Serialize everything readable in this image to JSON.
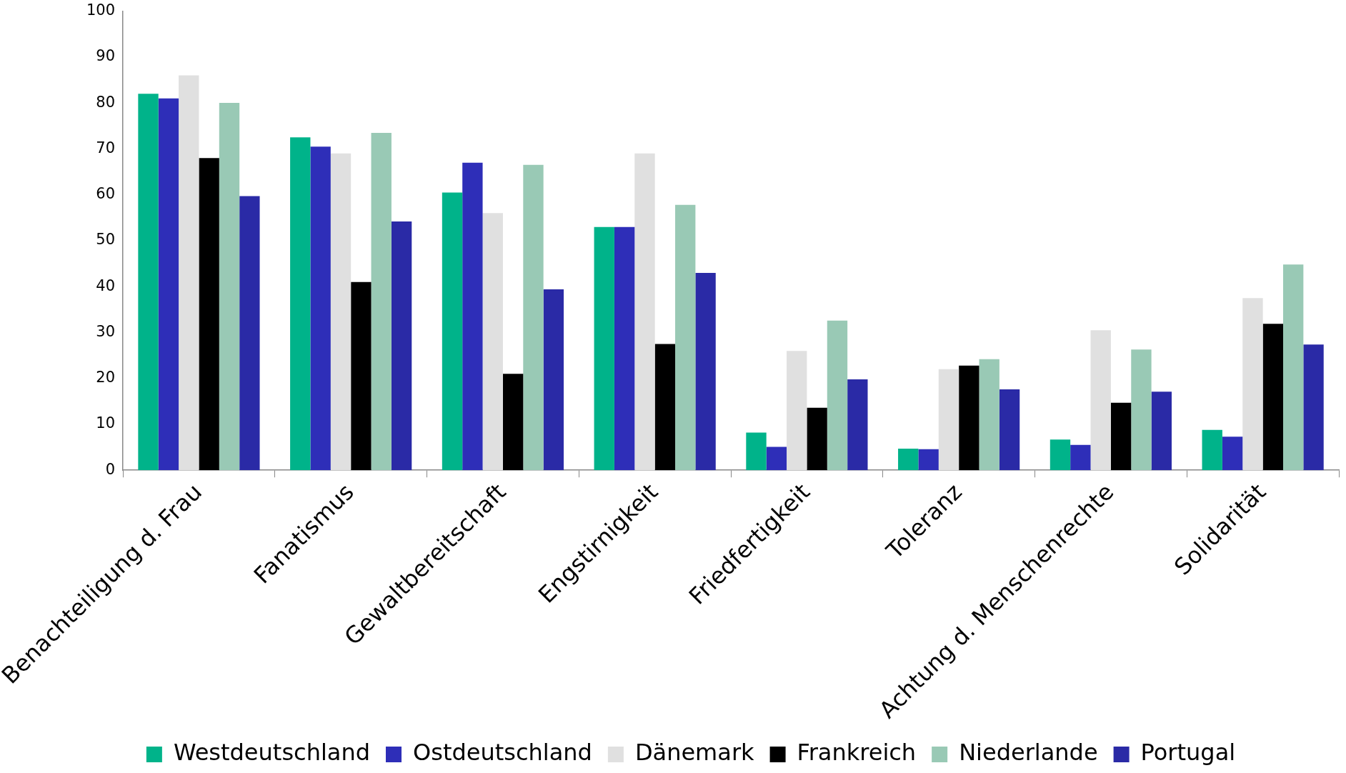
{
  "chart_data": {
    "type": "bar",
    "categories": [
      "Benachteiligung d. Frau",
      "Fanatismus",
      "Gewaltbereitschaft",
      "Engstirnigkeit",
      "Friedfertigkeit",
      "Toleranz",
      "Achtung d. Menschenrechte",
      "Solidarität"
    ],
    "series": [
      {
        "name": "Westdeutschland",
        "color": "#00b38a",
        "values": [
          82,
          72.5,
          60.5,
          53,
          8.2,
          4.7,
          6.7,
          8.8
        ]
      },
      {
        "name": "Ostdeutschland",
        "color": "#2e2eb8",
        "values": [
          81,
          70.5,
          67,
          53,
          5.1,
          4.6,
          5.5,
          7.3
        ]
      },
      {
        "name": "Dänemark",
        "color": "#e0e0e0",
        "values": [
          86,
          69,
          56,
          69,
          26,
          22,
          30.5,
          37.5
        ]
      },
      {
        "name": "Frankreich",
        "color": "#000000",
        "values": [
          68,
          41,
          21,
          27.5,
          13.6,
          22.8,
          14.7,
          31.9
        ]
      },
      {
        "name": "Niederlande",
        "color": "#99c9b5",
        "values": [
          80,
          73.5,
          66.5,
          57.8,
          32.6,
          24.2,
          26.3,
          44.8
        ]
      },
      {
        "name": "Portugal",
        "color": "#2a2aa6",
        "values": [
          59.7,
          54.2,
          39.4,
          43,
          19.8,
          17.6,
          17.1,
          27.4
        ]
      }
    ],
    "ylim": [
      0,
      100
    ],
    "yticks": [
      0,
      10,
      20,
      30,
      40,
      50,
      60,
      70,
      80,
      90,
      100
    ],
    "grid": false,
    "legend": "bottom"
  }
}
